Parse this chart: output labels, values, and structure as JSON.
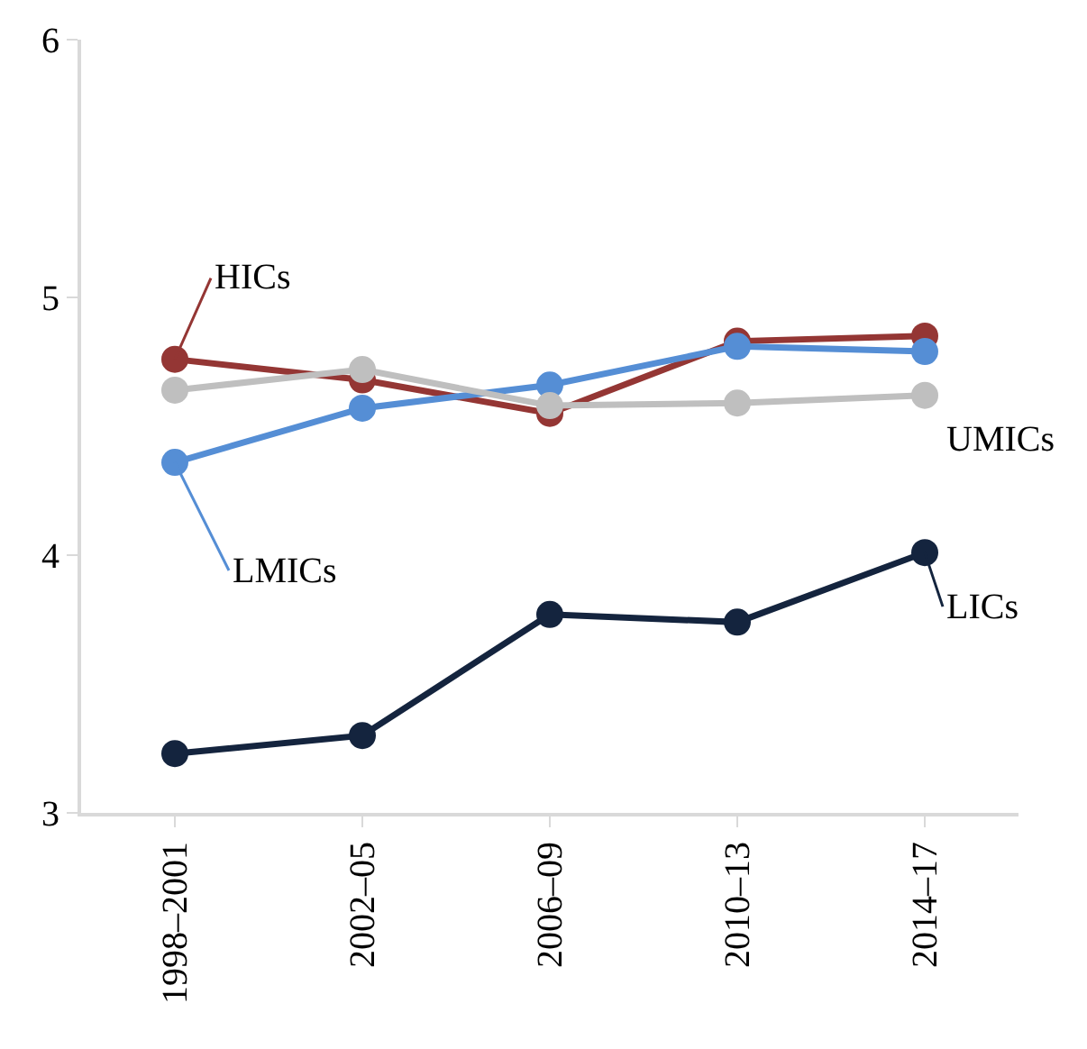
{
  "chart_data": {
    "type": "line",
    "categories": [
      "1998–2001",
      "2002–05",
      "2006–09",
      "2010–13",
      "2014–17"
    ],
    "series": [
      {
        "name": "HICs",
        "color": "#943634",
        "values": [
          4.76,
          4.68,
          4.55,
          4.83,
          4.85
        ]
      },
      {
        "name": "LMICs",
        "color": "#558ed5",
        "values": [
          4.36,
          4.57,
          4.66,
          4.81,
          4.79
        ]
      },
      {
        "name": "UMICs",
        "color": "#bfbfbf",
        "values": [
          4.64,
          4.72,
          4.58,
          4.59,
          4.62
        ]
      },
      {
        "name": "LICs",
        "color": "#14243e",
        "values": [
          3.23,
          3.3,
          3.77,
          3.74,
          4.01
        ]
      }
    ],
    "ylim": [
      3,
      6
    ],
    "yticks": [
      3,
      4,
      5,
      6
    ],
    "grid": false,
    "legend": false,
    "marker": "circle",
    "line_style": "solid"
  }
}
